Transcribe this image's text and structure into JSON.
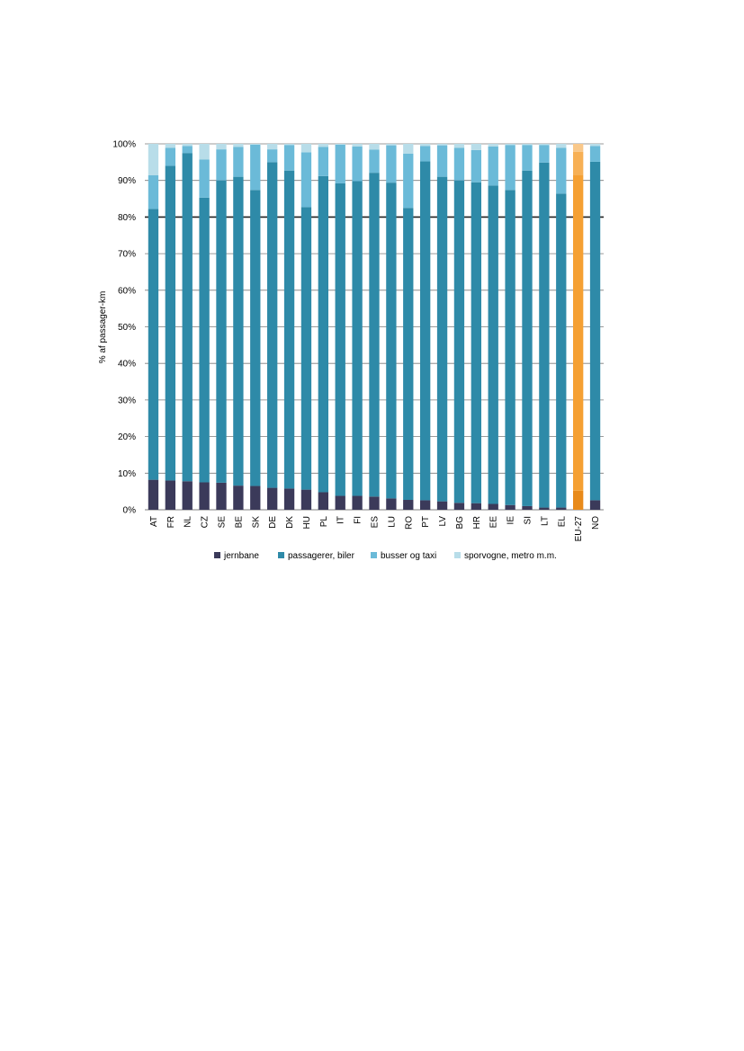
{
  "chart_data": {
    "type": "bar",
    "stacked": true,
    "ylabel": "% af passager-km",
    "ylim": [
      0,
      100
    ],
    "y_ticks": [
      "0%",
      "10%",
      "20%",
      "30%",
      "40%",
      "50%",
      "60%",
      "70%",
      "80%",
      "90%",
      "100%"
    ],
    "grid": true,
    "legend_position": "bottom",
    "categories": [
      "AT",
      "FR",
      "NL",
      "CZ",
      "SE",
      "BE",
      "SK",
      "DE",
      "DK",
      "HU",
      "PL",
      "IT",
      "FI",
      "ES",
      "LU",
      "RO",
      "PT",
      "LV",
      "BG",
      "HR",
      "EE",
      "IE",
      "SI",
      "LT",
      "EL",
      "EU-27",
      "NO"
    ],
    "highlight_category": "EU-27",
    "series": [
      {
        "name": "jernbane",
        "color": "#3b3a5a",
        "highlight_color": "#e88a1a",
        "values": [
          8.2,
          8.0,
          7.8,
          7.5,
          7.4,
          6.6,
          6.5,
          6.0,
          5.8,
          5.5,
          4.8,
          3.8,
          3.8,
          3.6,
          3.1,
          2.7,
          2.6,
          2.3,
          1.9,
          1.8,
          1.6,
          1.3,
          1.0,
          0.6,
          0.6,
          5.2,
          2.6
        ]
      },
      {
        "name": "passagerer, biler",
        "color": "#2e8aa8",
        "highlight_color": "#f5a033",
        "values": [
          74.0,
          86.0,
          89.7,
          77.8,
          82.6,
          84.4,
          80.9,
          89.0,
          86.9,
          77.2,
          86.4,
          85.4,
          86.0,
          88.5,
          86.3,
          79.8,
          92.6,
          88.7,
          88.1,
          87.7,
          87.0,
          86.1,
          91.7,
          94.3,
          85.8,
          86.3,
          92.5
        ]
      },
      {
        "name": "busser og taxi",
        "color": "#6bbad8",
        "highlight_color": "#f7b055",
        "values": [
          9.2,
          4.9,
          1.9,
          10.4,
          8.5,
          8.2,
          12.4,
          3.5,
          7.0,
          15.0,
          8.0,
          10.6,
          9.5,
          6.3,
          10.2,
          14.8,
          4.2,
          8.6,
          8.9,
          8.8,
          10.7,
          12.3,
          7.0,
          4.8,
          12.5,
          6.3,
          4.3
        ]
      },
      {
        "name": "sporvogne, metro m.m.",
        "color": "#b8dde9",
        "highlight_color": "#f9c88a",
        "values": [
          8.6,
          1.1,
          0.6,
          4.3,
          1.5,
          0.8,
          0.2,
          1.5,
          0.3,
          2.3,
          0.8,
          0.2,
          0.7,
          1.6,
          0.4,
          2.7,
          0.6,
          0.4,
          1.1,
          1.7,
          0.7,
          0.3,
          0.3,
          0.3,
          1.1,
          2.2,
          0.6
        ]
      }
    ]
  }
}
